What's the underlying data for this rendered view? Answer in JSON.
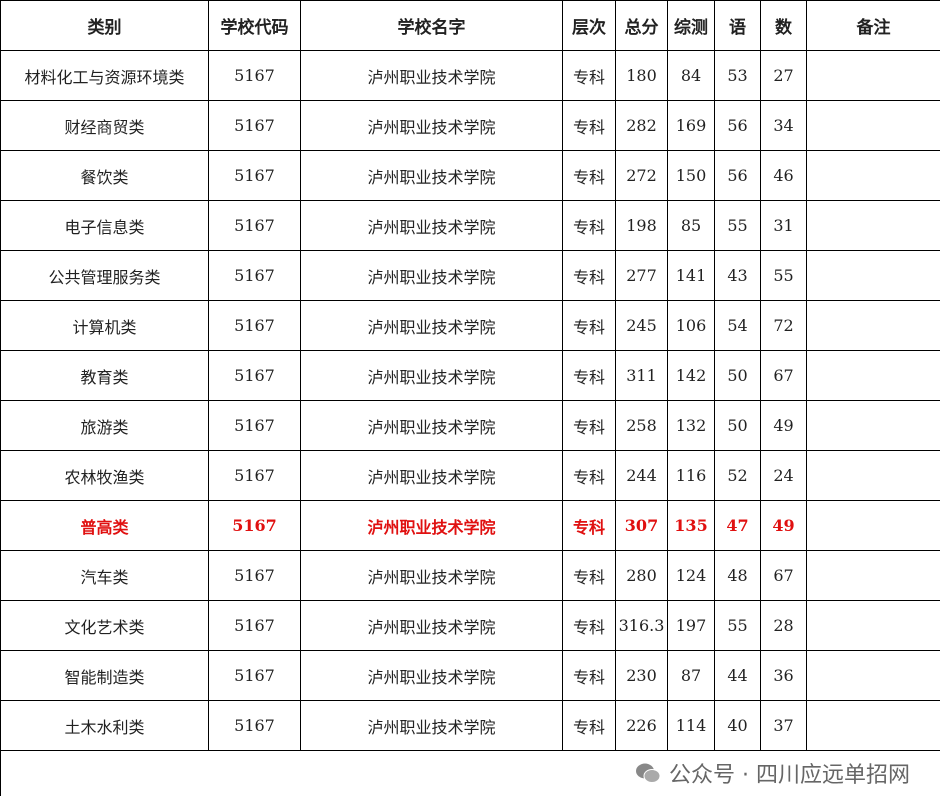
{
  "table": {
    "header": [
      "类别",
      "学校代码",
      "学校名字",
      "层次",
      "总分",
      "综测",
      "语",
      "数",
      "备注"
    ],
    "rows": [
      [
        "材料化工与资源环境类",
        "5167",
        "泸州职业技术学院",
        "专科",
        "180",
        "84",
        "53",
        "27",
        ""
      ],
      [
        "财经商贸类",
        "5167",
        "泸州职业技术学院",
        "专科",
        "282",
        "169",
        "56",
        "34",
        ""
      ],
      [
        "餐饮类",
        "5167",
        "泸州职业技术学院",
        "专科",
        "272",
        "150",
        "56",
        "46",
        ""
      ],
      [
        "电子信息类",
        "5167",
        "泸州职业技术学院",
        "专科",
        "198",
        "85",
        "55",
        "31",
        ""
      ],
      [
        "公共管理服务类",
        "5167",
        "泸州职业技术学院",
        "专科",
        "277",
        "141",
        "43",
        "55",
        ""
      ],
      [
        "计算机类",
        "5167",
        "泸州职业技术学院",
        "专科",
        "245",
        "106",
        "54",
        "72",
        ""
      ],
      [
        "教育类",
        "5167",
        "泸州职业技术学院",
        "专科",
        "311",
        "142",
        "50",
        "67",
        ""
      ],
      [
        "旅游类",
        "5167",
        "泸州职业技术学院",
        "专科",
        "258",
        "132",
        "50",
        "49",
        ""
      ],
      [
        "农林牧渔类",
        "5167",
        "泸州职业技术学院",
        "专科",
        "244",
        "116",
        "52",
        "24",
        ""
      ],
      [
        "普高类",
        "5167",
        "泸州职业技术学院",
        "专科",
        "307",
        "135",
        "47",
        "49",
        ""
      ],
      [
        "汽车类",
        "5167",
        "泸州职业技术学院",
        "专科",
        "280",
        "124",
        "48",
        "67",
        ""
      ],
      [
        "文化艺术类",
        "5167",
        "泸州职业技术学院",
        "专科",
        "316.3",
        "197",
        "55",
        "28",
        ""
      ],
      [
        "智能制造类",
        "5167",
        "泸州职业技术学院",
        "专科",
        "230",
        "87",
        "44",
        "36",
        ""
      ],
      [
        "土木水利类",
        "5167",
        "泸州职业技术学院",
        "专科",
        "226",
        "114",
        "40",
        "37",
        ""
      ]
    ]
  },
  "watermark": "公众号 · 四川应远单招网"
}
